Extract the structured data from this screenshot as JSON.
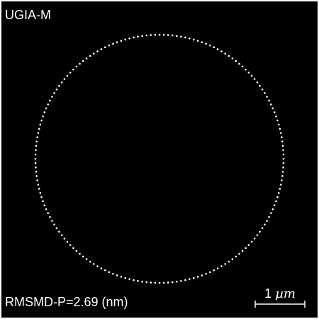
{
  "panel": {
    "method": "UGIA-M",
    "metric": "RMSMD-P=2.69 (nm)",
    "background_color": "#000000",
    "foreground_color": "#ffffff"
  },
  "scale_bar": {
    "value": "1",
    "unit": "µm"
  },
  "ring": {
    "shape": "circle",
    "style": "dotted",
    "dot_color": "#ffffff"
  }
}
